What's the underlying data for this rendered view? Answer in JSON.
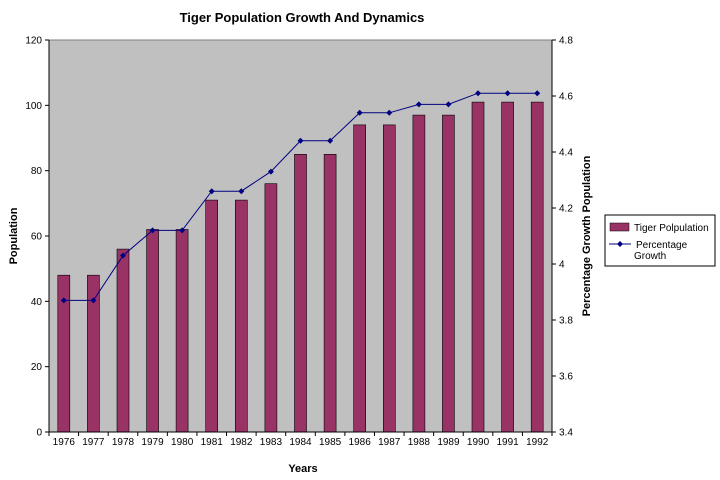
{
  "chart_data": {
    "type": "bar",
    "title": "Tiger Population Growth And Dynamics",
    "xlabel": "Years",
    "ylabel": "Population",
    "y2label": "Percentage Growth Population",
    "categories": [
      "1976",
      "1977",
      "1978",
      "1979",
      "1980",
      "1981",
      "1982",
      "1983",
      "1984",
      "1985",
      "1986",
      "1987",
      "1988",
      "1989",
      "1990",
      "1991",
      "1992"
    ],
    "ylim": [
      0,
      120
    ],
    "yticks": [
      0,
      20,
      40,
      60,
      80,
      100,
      120
    ],
    "y2lim": [
      3.4,
      4.8
    ],
    "y2ticks": [
      "3.4",
      "3.6",
      "3.8",
      "4",
      "4.2",
      "4.4",
      "4.6",
      "4.8"
    ],
    "grid": false,
    "plot_background": "#c0c0c0",
    "legend_position": "right",
    "series": [
      {
        "name": "Tiger Polpulation",
        "type": "bar",
        "axis": "left",
        "color": "#993366",
        "values": [
          48,
          48,
          56,
          62,
          62,
          71,
          71,
          76,
          85,
          85,
          94,
          94,
          97,
          97,
          101,
          101,
          101
        ]
      },
      {
        "name": "Percentage Growth",
        "type": "line",
        "axis": "right",
        "color": "#000080",
        "marker": "diamond",
        "values": [
          3.87,
          3.87,
          4.03,
          4.12,
          4.12,
          4.26,
          4.26,
          4.33,
          4.44,
          4.44,
          4.54,
          4.54,
          4.57,
          4.57,
          4.61,
          4.61,
          4.61
        ]
      }
    ]
  }
}
